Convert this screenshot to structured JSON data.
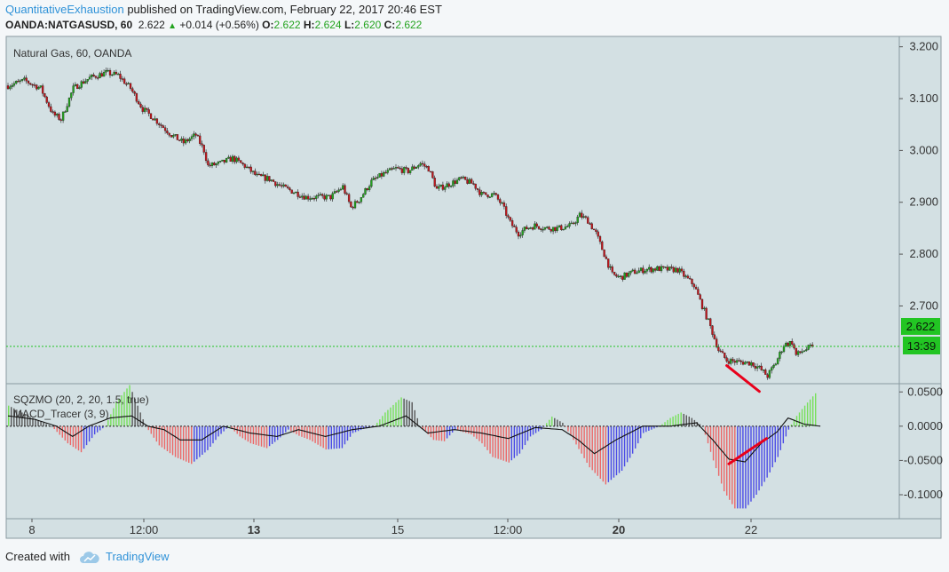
{
  "header": {
    "author": "QuantitativeExhaustion",
    "published_text": "published on TradingView.com, February 22, 2017 20:46 EST",
    "symbol": "OANDA:NATGASUSD, 60",
    "last": "2.622",
    "change": "+0.014 (+0.56%)",
    "o_label": "O:",
    "o_value": "2.622",
    "h_label": "H:",
    "h_value": "2.624",
    "l_label": "L:",
    "l_value": "2.620",
    "c_label": "C:",
    "c_value": "2.622"
  },
  "main_pane": {
    "title": "Natural Gas, 60, OANDA",
    "price_label": "2.622",
    "countdown_label": "13:39"
  },
  "indicator_pane": {
    "label1": "SQZMO (20, 2, 20, 1.5, true)",
    "label2": "MACD_Tracer (3, 9)"
  },
  "footer": {
    "created_with": "Created with",
    "brand": "TradingView"
  },
  "colors": {
    "background": "#d3e0e3",
    "page": "#f4f7f9",
    "up": "#23a31f",
    "down": "#c0161c",
    "price_label_bg": "#22c523",
    "hist_red": "#ec6767",
    "hist_blue": "#4a4ae6",
    "hist_green": "#77e05a",
    "hist_gray": "#555555",
    "annotation": "#e8001b",
    "author_link": "#2f92d8"
  },
  "chart_data": [
    {
      "type": "candlestick",
      "title": "Natural Gas, 60, OANDA",
      "y_axis_ticks": [
        3.2,
        3.1,
        3.0,
        2.9,
        2.8,
        2.7
      ],
      "y_axis_tick_labels": [
        "3.200",
        "3.100",
        "3.000",
        "2.900",
        "2.800",
        "2.700"
      ],
      "ylim": [
        2.55,
        3.22
      ],
      "x_axis_tick_labels": [
        "8",
        "12:00",
        "13",
        "15",
        "12:00",
        "20",
        "22"
      ],
      "x_axis_bold_labels": [
        "13",
        "20"
      ],
      "close_path": [
        [
          0,
          3.125
        ],
        [
          8,
          3.135
        ],
        [
          16,
          3.12
        ],
        [
          22,
          3.07
        ],
        [
          26,
          3.06
        ],
        [
          32,
          3.12
        ],
        [
          40,
          3.14
        ],
        [
          48,
          3.15
        ],
        [
          54,
          3.145
        ],
        [
          60,
          3.12
        ],
        [
          66,
          3.08
        ],
        [
          72,
          3.06
        ],
        [
          80,
          3.03
        ],
        [
          86,
          3.015
        ],
        [
          92,
          3.03
        ],
        [
          96,
          3.0
        ],
        [
          98,
          2.97
        ],
        [
          104,
          2.975
        ],
        [
          110,
          2.985
        ],
        [
          116,
          2.97
        ],
        [
          122,
          2.95
        ],
        [
          128,
          2.945
        ],
        [
          134,
          2.93
        ],
        [
          140,
          2.92
        ],
        [
          146,
          2.91
        ],
        [
          152,
          2.91
        ],
        [
          158,
          2.91
        ],
        [
          164,
          2.93
        ],
        [
          168,
          2.89
        ],
        [
          172,
          2.905
        ],
        [
          178,
          2.94
        ],
        [
          184,
          2.955
        ],
        [
          190,
          2.965
        ],
        [
          196,
          2.96
        ],
        [
          202,
          2.975
        ],
        [
          206,
          2.965
        ],
        [
          210,
          2.925
        ],
        [
          216,
          2.935
        ],
        [
          222,
          2.945
        ],
        [
          228,
          2.935
        ],
        [
          232,
          2.915
        ],
        [
          238,
          2.915
        ],
        [
          242,
          2.895
        ],
        [
          246,
          2.86
        ],
        [
          250,
          2.84
        ],
        [
          254,
          2.85
        ],
        [
          258,
          2.855
        ],
        [
          264,
          2.85
        ],
        [
          270,
          2.85
        ],
        [
          276,
          2.855
        ],
        [
          280,
          2.875
        ],
        [
          284,
          2.865
        ],
        [
          288,
          2.84
        ],
        [
          292,
          2.8
        ],
        [
          296,
          2.76
        ],
        [
          300,
          2.755
        ],
        [
          306,
          2.765
        ],
        [
          312,
          2.77
        ],
        [
          318,
          2.772
        ],
        [
          324,
          2.77
        ],
        [
          328,
          2.77
        ],
        [
          332,
          2.755
        ],
        [
          336,
          2.74
        ],
        [
          340,
          2.7
        ],
        [
          344,
          2.66
        ],
        [
          348,
          2.615
        ],
        [
          352,
          2.595
        ],
        [
          358,
          2.592
        ],
        [
          364,
          2.59
        ],
        [
          368,
          2.58
        ],
        [
          372,
          2.565
        ],
        [
          376,
          2.59
        ],
        [
          380,
          2.625
        ],
        [
          384,
          2.63
        ],
        [
          386,
          2.605
        ],
        [
          390,
          2.615
        ],
        [
          394,
          2.622
        ]
      ],
      "last_price": 2.622,
      "annotation": {
        "type": "trendline",
        "from": [
          352,
          2.585
        ],
        "to": [
          368,
          2.535
        ],
        "color": "#e8001b"
      }
    },
    {
      "type": "histogram+line",
      "series": [
        {
          "name": "SQZMO (20, 2, 20, 1.5, true)",
          "kind": "histogram"
        },
        {
          "name": "MACD_Tracer (3, 9)",
          "kind": "line"
        }
      ],
      "y_axis_ticks": [
        0.05,
        0.0,
        -0.05,
        -0.1
      ],
      "y_axis_tick_labels": [
        "0.0500",
        "0.0000",
        "-0.0500",
        "-0.1000"
      ],
      "ylim": [
        -0.135,
        0.062
      ],
      "histogram_path": [
        [
          0,
          0.03
        ],
        [
          10,
          0.01
        ],
        [
          16,
          0.0
        ],
        [
          22,
          -0.025
        ],
        [
          27,
          -0.038
        ],
        [
          32,
          -0.012
        ],
        [
          36,
          0.0
        ],
        [
          40,
          0.035
        ],
        [
          45,
          0.06
        ],
        [
          49,
          0.02
        ],
        [
          51,
          0.0
        ],
        [
          56,
          -0.028
        ],
        [
          62,
          -0.045
        ],
        [
          68,
          -0.055
        ],
        [
          74,
          -0.035
        ],
        [
          78,
          -0.015
        ],
        [
          82,
          0.0
        ],
        [
          86,
          -0.015
        ],
        [
          90,
          -0.025
        ],
        [
          96,
          -0.032
        ],
        [
          100,
          -0.02
        ],
        [
          104,
          -0.005
        ],
        [
          108,
          -0.014
        ],
        [
          112,
          -0.02
        ],
        [
          118,
          -0.034
        ],
        [
          124,
          -0.032
        ],
        [
          128,
          -0.01
        ],
        [
          132,
          -0.004
        ],
        [
          136,
          0.0
        ],
        [
          140,
          0.02
        ],
        [
          146,
          0.042
        ],
        [
          150,
          0.035
        ],
        [
          153,
          0.0
        ],
        [
          158,
          -0.02
        ],
        [
          162,
          -0.022
        ],
        [
          166,
          -0.005
        ],
        [
          172,
          -0.012
        ],
        [
          176,
          -0.025
        ],
        [
          180,
          -0.045
        ],
        [
          186,
          -0.053
        ],
        [
          190,
          -0.04
        ],
        [
          194,
          -0.015
        ],
        [
          198,
          -0.005
        ],
        [
          202,
          0.014
        ],
        [
          206,
          0.005
        ],
        [
          210,
          -0.02
        ],
        [
          216,
          -0.06
        ],
        [
          222,
          -0.085
        ],
        [
          228,
          -0.065
        ],
        [
          232,
          -0.04
        ],
        [
          236,
          -0.01
        ],
        [
          242,
          0.0
        ],
        [
          246,
          0.012
        ],
        [
          250,
          0.02
        ],
        [
          254,
          0.012
        ],
        [
          258,
          0.0
        ],
        [
          262,
          -0.05
        ],
        [
          266,
          -0.095
        ],
        [
          270,
          -0.12
        ],
        [
          274,
          -0.12
        ],
        [
          278,
          -0.1
        ],
        [
          282,
          -0.075
        ],
        [
          286,
          -0.045
        ],
        [
          290,
          -0.005
        ],
        [
          292,
          0.01
        ],
        [
          296,
          0.03
        ],
        [
          300,
          0.048
        ]
      ],
      "tracer_path": [
        [
          0,
          0.015
        ],
        [
          10,
          0.01
        ],
        [
          18,
          0.0
        ],
        [
          24,
          -0.015
        ],
        [
          30,
          0.0
        ],
        [
          38,
          0.012
        ],
        [
          46,
          0.015
        ],
        [
          52,
          0.0
        ],
        [
          58,
          -0.005
        ],
        [
          64,
          -0.02
        ],
        [
          72,
          -0.02
        ],
        [
          80,
          0.0
        ],
        [
          90,
          -0.01
        ],
        [
          100,
          -0.015
        ],
        [
          108,
          -0.005
        ],
        [
          118,
          -0.015
        ],
        [
          128,
          -0.005
        ],
        [
          138,
          0.0
        ],
        [
          148,
          0.015
        ],
        [
          156,
          -0.01
        ],
        [
          166,
          -0.005
        ],
        [
          176,
          -0.01
        ],
        [
          186,
          -0.018
        ],
        [
          196,
          -0.002
        ],
        [
          206,
          -0.005
        ],
        [
          212,
          -0.02
        ],
        [
          218,
          -0.04
        ],
        [
          226,
          -0.02
        ],
        [
          236,
          0.0
        ],
        [
          246,
          0.0
        ],
        [
          256,
          0.005
        ],
        [
          262,
          -0.02
        ],
        [
          268,
          -0.048
        ],
        [
          274,
          -0.052
        ],
        [
          280,
          -0.025
        ],
        [
          286,
          -0.008
        ],
        [
          290,
          0.012
        ],
        [
          296,
          0.003
        ],
        [
          302,
          0.0
        ]
      ],
      "annotation": {
        "type": "trendline",
        "from": [
          268,
          -0.055
        ],
        "to": [
          282,
          -0.018
        ],
        "color": "#e8001b"
      }
    }
  ]
}
